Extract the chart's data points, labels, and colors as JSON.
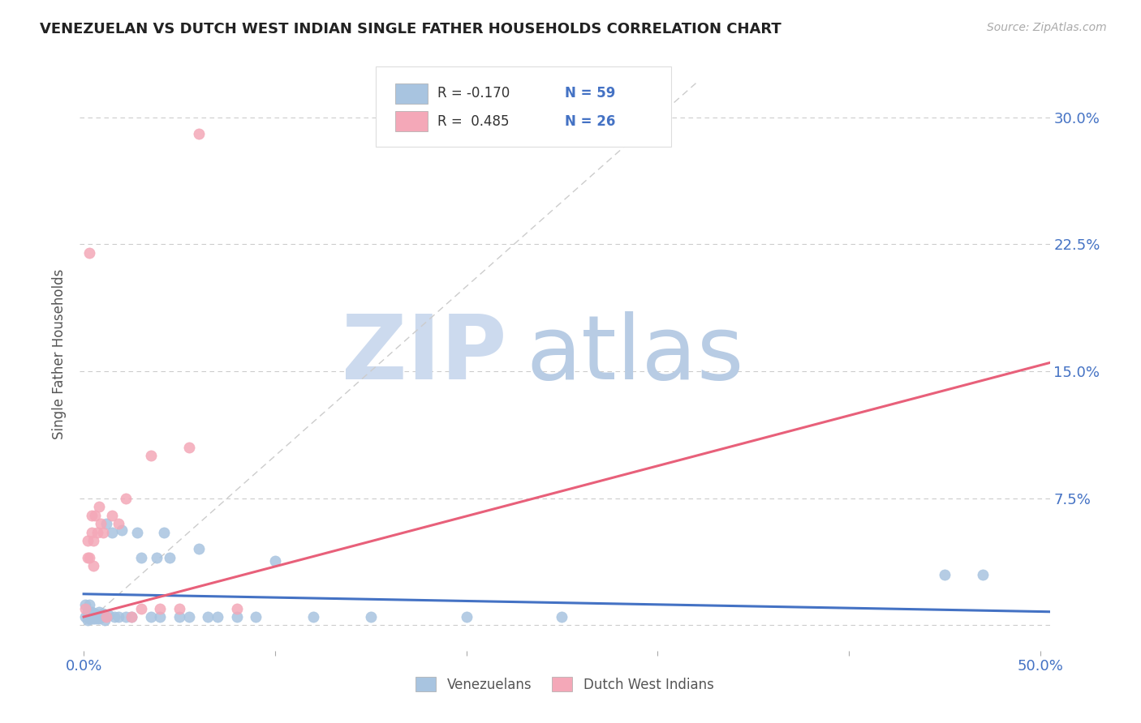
{
  "title": "VENEZUELAN VS DUTCH WEST INDIAN SINGLE FATHER HOUSEHOLDS CORRELATION CHART",
  "source": "Source: ZipAtlas.com",
  "ylabel": "Single Father Households",
  "ytick_labels": [
    "",
    "7.5%",
    "15.0%",
    "22.5%",
    "30.0%"
  ],
  "ytick_values": [
    0.0,
    0.075,
    0.15,
    0.225,
    0.3
  ],
  "xlim": [
    -0.002,
    0.505
  ],
  "ylim": [
    -0.015,
    0.335
  ],
  "ven_color": "#a8c4e0",
  "dwi_color": "#f4a8b8",
  "ven_line_color": "#4472c4",
  "dwi_line_color": "#e8607a",
  "diag_color": "#cccccc",
  "title_color": "#222222",
  "axis_label_color": "#4472c4",
  "watermark_ZIP_color": "#ccdaee",
  "watermark_atlas_color": "#b8cce4",
  "background_color": "#ffffff",
  "venezuelan_x": [
    0.001,
    0.001,
    0.002,
    0.002,
    0.002,
    0.003,
    0.003,
    0.003,
    0.003,
    0.004,
    0.004,
    0.004,
    0.004,
    0.005,
    0.005,
    0.005,
    0.005,
    0.005,
    0.006,
    0.006,
    0.006,
    0.007,
    0.007,
    0.007,
    0.008,
    0.008,
    0.009,
    0.01,
    0.01,
    0.011,
    0.012,
    0.013,
    0.015,
    0.016,
    0.018,
    0.02,
    0.022,
    0.025,
    0.028,
    0.03,
    0.035,
    0.038,
    0.04,
    0.042,
    0.045,
    0.05,
    0.055,
    0.06,
    0.065,
    0.07,
    0.08,
    0.09,
    0.1,
    0.12,
    0.15,
    0.2,
    0.25,
    0.45,
    0.47
  ],
  "venezuelan_y": [
    0.012,
    0.005,
    0.008,
    0.005,
    0.003,
    0.006,
    0.005,
    0.004,
    0.012,
    0.005,
    0.008,
    0.004,
    0.005,
    0.006,
    0.005,
    0.007,
    0.004,
    0.005,
    0.005,
    0.007,
    0.004,
    0.005,
    0.004,
    0.006,
    0.008,
    0.004,
    0.006,
    0.005,
    0.007,
    0.003,
    0.06,
    0.006,
    0.055,
    0.005,
    0.005,
    0.056,
    0.005,
    0.005,
    0.055,
    0.04,
    0.005,
    0.04,
    0.005,
    0.055,
    0.04,
    0.005,
    0.005,
    0.045,
    0.005,
    0.005,
    0.005,
    0.005,
    0.038,
    0.005,
    0.005,
    0.005,
    0.005,
    0.03,
    0.03
  ],
  "dwi_x": [
    0.001,
    0.002,
    0.002,
    0.003,
    0.003,
    0.004,
    0.004,
    0.005,
    0.005,
    0.006,
    0.007,
    0.008,
    0.009,
    0.01,
    0.012,
    0.015,
    0.018,
    0.022,
    0.025,
    0.03,
    0.035,
    0.04,
    0.05,
    0.055,
    0.06,
    0.08
  ],
  "dwi_y": [
    0.01,
    0.04,
    0.05,
    0.22,
    0.04,
    0.055,
    0.065,
    0.05,
    0.035,
    0.065,
    0.055,
    0.07,
    0.06,
    0.055,
    0.005,
    0.065,
    0.06,
    0.075,
    0.005,
    0.01,
    0.1,
    0.01,
    0.01,
    0.105,
    0.29,
    0.01
  ],
  "ven_trend_x0": 0.0,
  "ven_trend_y0": 0.0185,
  "ven_trend_x1": 0.505,
  "ven_trend_y1": 0.008,
  "dwi_trend_x0": 0.0,
  "dwi_trend_y0": 0.005,
  "dwi_trend_x1": 0.505,
  "dwi_trend_y1": 0.155
}
